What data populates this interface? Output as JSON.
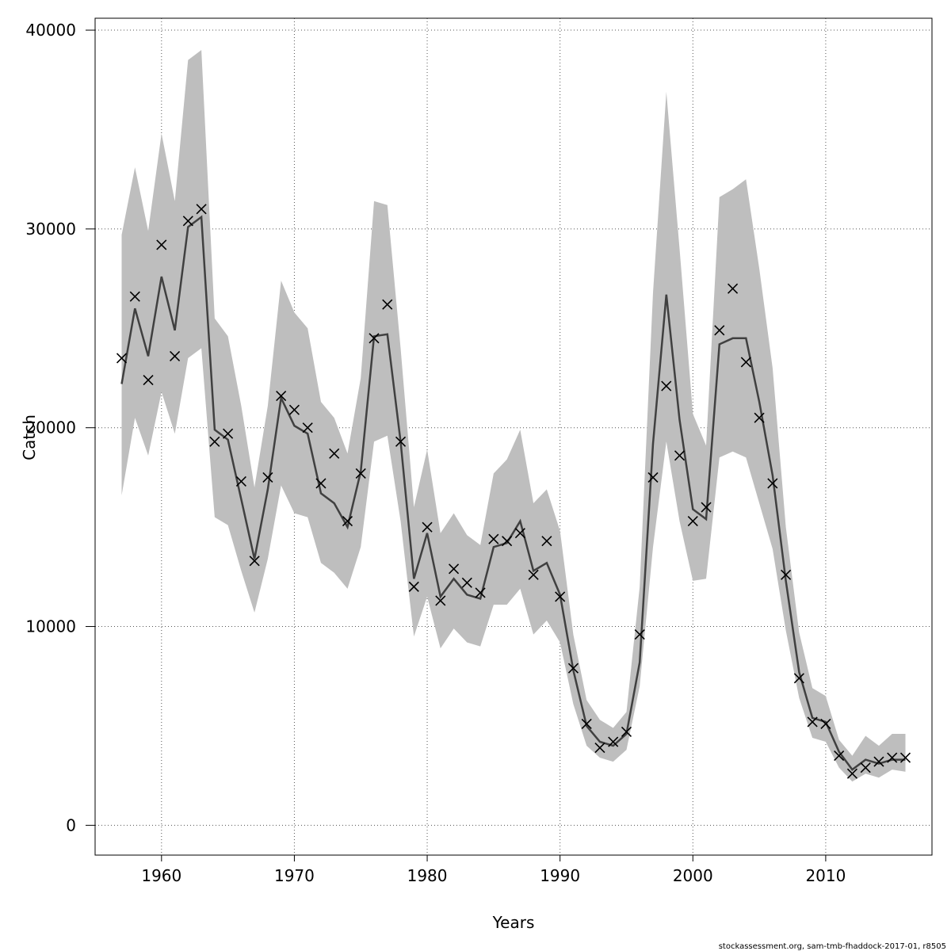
{
  "chart_data": {
    "type": "line",
    "xlabel": "Years",
    "ylabel": "Catch",
    "xlim": [
      1955,
      2018
    ],
    "ylim": [
      -1500,
      40600
    ],
    "x_ticks": [
      1960,
      1970,
      1980,
      1990,
      2000,
      2010
    ],
    "y_ticks": [
      0,
      10000,
      20000,
      30000,
      40000
    ],
    "grid": true,
    "years": [
      1957,
      1958,
      1959,
      1960,
      1961,
      1962,
      1963,
      1964,
      1965,
      1966,
      1967,
      1968,
      1969,
      1970,
      1971,
      1972,
      1973,
      1974,
      1975,
      1976,
      1977,
      1978,
      1979,
      1980,
      1981,
      1982,
      1983,
      1984,
      1985,
      1986,
      1987,
      1988,
      1989,
      1990,
      1991,
      1992,
      1993,
      1994,
      1995,
      1996,
      1997,
      1998,
      1999,
      2000,
      2001,
      2002,
      2003,
      2004,
      2005,
      2006,
      2007,
      2008,
      2009,
      2010,
      2011,
      2012,
      2013,
      2014,
      2015,
      2016
    ],
    "series": [
      {
        "kind": "estimate",
        "values": [
          22200,
          26000,
          23600,
          27600,
          24900,
          30100,
          30600,
          19900,
          19400,
          16400,
          13400,
          16900,
          21500,
          20100,
          19700,
          16700,
          16200,
          15000,
          17800,
          24600,
          24700,
          19300,
          12400,
          14700,
          11500,
          12400,
          11600,
          11400,
          14000,
          14200,
          15300,
          12800,
          13200,
          11600,
          7800,
          5000,
          4200,
          4000,
          4600,
          8200,
          19200,
          26700,
          20400,
          15900,
          15400,
          24200,
          24500,
          24500,
          21300,
          17600,
          12300,
          7700,
          5400,
          5200,
          3700,
          2800,
          3300,
          3100,
          3300,
          3300
        ]
      },
      {
        "kind": "upper",
        "values": [
          29700,
          33100,
          29900,
          34800,
          31400,
          38500,
          39000,
          25500,
          24600,
          21100,
          17000,
          21100,
          27400,
          25800,
          25000,
          21300,
          20500,
          18700,
          22500,
          31400,
          31200,
          24000,
          16000,
          18900,
          14700,
          15700,
          14600,
          14100,
          17700,
          18400,
          19900,
          16200,
          16900,
          14800,
          9600,
          6300,
          5300,
          4900,
          5700,
          12000,
          26800,
          36900,
          29000,
          20700,
          19100,
          31600,
          32000,
          32500,
          28000,
          23000,
          15000,
          9700,
          6900,
          6500,
          4300,
          3500,
          4500,
          4000,
          4600,
          4600
        ]
      },
      {
        "kind": "lower",
        "values": [
          16600,
          20500,
          18600,
          21800,
          19700,
          23500,
          24000,
          15500,
          15100,
          12800,
          10700,
          13400,
          17100,
          15700,
          15500,
          13200,
          12700,
          11900,
          14000,
          19300,
          19600,
          15300,
          9500,
          11500,
          8900,
          9900,
          9200,
          9000,
          11100,
          11100,
          11900,
          9600,
          10300,
          9200,
          6100,
          4000,
          3400,
          3200,
          3800,
          7000,
          14000,
          19300,
          15300,
          12300,
          12400,
          18500,
          18800,
          18500,
          16200,
          13900,
          9800,
          6400,
          4400,
          4200,
          2900,
          2200,
          2600,
          2400,
          2800,
          2700
        ]
      },
      {
        "kind": "observed",
        "values": [
          23500,
          26600,
          22400,
          29200,
          23600,
          30400,
          31000,
          19300,
          19700,
          17300,
          13300,
          17500,
          21600,
          20900,
          20000,
          17200,
          18700,
          15300,
          17700,
          24500,
          26200,
          19300,
          12000,
          15000,
          11300,
          12900,
          12200,
          11700,
          14400,
          14300,
          14700,
          12600,
          14300,
          11500,
          7900,
          5100,
          3900,
          4200,
          4700,
          9600,
          17500,
          22100,
          18600,
          15300,
          16000,
          24900,
          27000,
          23300,
          20500,
          17200,
          12600,
          7400,
          5200,
          5100,
          3500,
          2600,
          2900,
          3200,
          3400,
          3400
        ]
      }
    ]
  },
  "footer": "stockassessment.org, sam-tmb-fhaddock-2017-01, r8505"
}
